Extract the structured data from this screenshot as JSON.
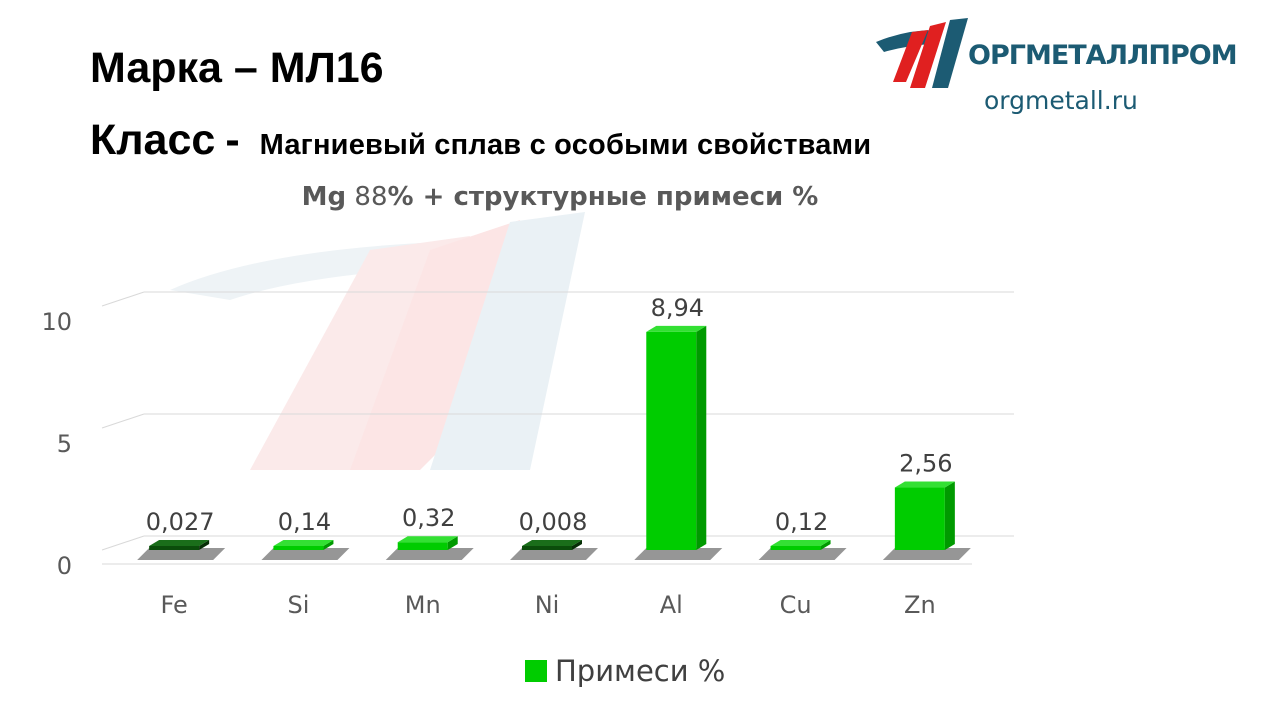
{
  "header": {
    "grade_line": "Марка – МЛ16",
    "class_label": "Класс",
    "class_sep": "-",
    "class_value": "Магниевый сплав с особыми свойствами"
  },
  "logo": {
    "brand": "ОРГМЕТАЛЛПРОМ",
    "site": "orgmetall.ru"
  },
  "subtitle": {
    "part1": "Mg",
    "part2": " 88",
    "part3": "% + структурные  примеси %"
  },
  "chart_data": {
    "type": "bar",
    "title": "Mg 88% + структурные  примеси %",
    "categories": [
      "Fe",
      "Si",
      "Mn",
      "Ni",
      "Al",
      "Cu",
      "Zn"
    ],
    "series": [
      {
        "name": "Примеси %",
        "values": [
          0.027,
          0.14,
          0.32,
          0.008,
          8.94,
          0.12,
          2.56
        ],
        "labels": [
          "0,027",
          "0,14",
          "0,32",
          "0,008",
          "8,94",
          "0,12",
          "2,56"
        ],
        "color": "#00cc00"
      }
    ],
    "ylim": [
      0,
      10
    ],
    "yticks": [
      0,
      5,
      10
    ],
    "grid": true,
    "legend_position": "bottom",
    "style": "3d-column"
  }
}
